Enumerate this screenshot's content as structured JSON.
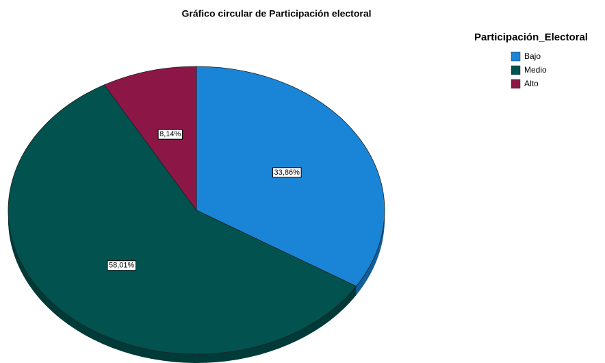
{
  "chart_data": {
    "type": "pie",
    "title": "Gráfico circular de Participación electoral",
    "legend_title": "Participación_Electoral",
    "legend_position": "upper right",
    "categories": [
      "Bajo",
      "Medio",
      "Alto"
    ],
    "values": [
      33.86,
      58.01,
      8.14
    ],
    "value_labels": [
      "33,86%",
      "58,01%",
      "8,14%"
    ],
    "colors": [
      "#1a84d6",
      "#02524f",
      "#8c1747"
    ]
  }
}
